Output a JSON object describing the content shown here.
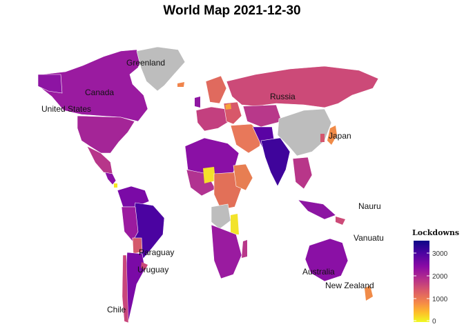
{
  "title": "World Map 2021-12-30",
  "legend": {
    "title": "Lockdowns",
    "ticks": [
      "3000",
      "2000",
      "1000",
      "0"
    ],
    "range": [
      0,
      3400
    ],
    "palette": "plasma-reversed"
  },
  "country_labels": [
    {
      "key": "greenland",
      "text": "Greenland"
    },
    {
      "key": "canada",
      "text": "Canada"
    },
    {
      "key": "united_states",
      "text": "United States"
    },
    {
      "key": "russia",
      "text": "Russia"
    },
    {
      "key": "japan",
      "text": "Japan"
    },
    {
      "key": "nauru",
      "text": "Nauru"
    },
    {
      "key": "vanuatu",
      "text": "Vanuatu"
    },
    {
      "key": "paraguay",
      "text": "Paraguay"
    },
    {
      "key": "uruguay",
      "text": "Uruguay"
    },
    {
      "key": "australia",
      "text": "Australia"
    },
    {
      "key": "new_zealand",
      "text": "New Zealand"
    },
    {
      "key": "chile",
      "text": "Chile"
    }
  ],
  "colors": {
    "no_data": "#bdbdbd",
    "low": "#f0f921",
    "high": "#0d0887",
    "border": "#ffffff"
  }
}
